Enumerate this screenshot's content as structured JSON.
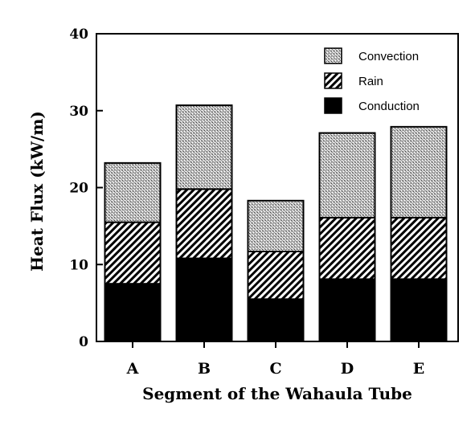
{
  "chart_data": {
    "type": "bar",
    "stacked": true,
    "title": "",
    "xlabel": "Segment of the Wahaula Tube",
    "ylabel": "Heat Flux (kW/m)",
    "ylim": [
      0,
      40
    ],
    "yticks": [
      "0",
      "10",
      "20",
      "30",
      "40"
    ],
    "categories": [
      "A",
      "B",
      "C",
      "D",
      "E"
    ],
    "series": [
      {
        "name": "Conduction",
        "values": [
          7.5,
          10.8,
          5.5,
          8.1,
          8.1
        ],
        "pattern": "solid-black"
      },
      {
        "name": "Rain",
        "values": [
          8.0,
          9.0,
          6.2,
          8.0,
          8.0
        ],
        "pattern": "diagonal-hatch"
      },
      {
        "name": "Convection",
        "values": [
          7.7,
          10.9,
          6.6,
          11.0,
          11.8
        ],
        "pattern": "stipple"
      }
    ],
    "legend": {
      "placement": "top-right",
      "order": [
        "Convection",
        "Rain",
        "Conduction"
      ]
    },
    "grid": false,
    "colors": {
      "ink": "#000000",
      "background": "#ffffff"
    }
  }
}
